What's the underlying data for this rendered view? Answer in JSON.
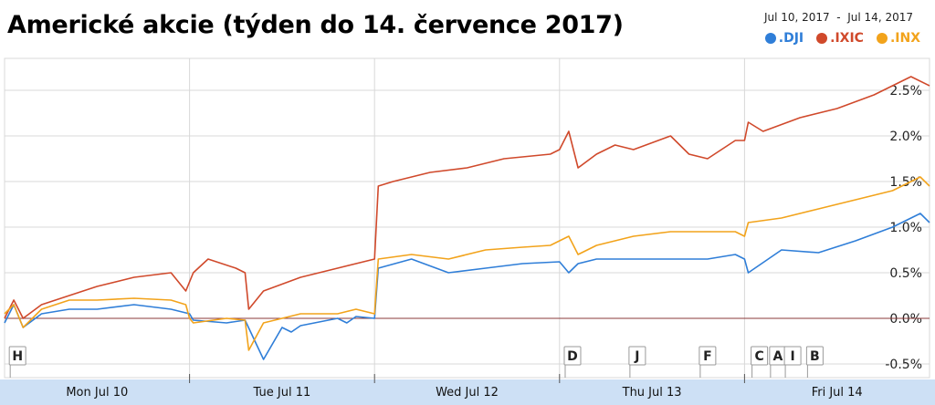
{
  "title": "Americké akcie (týden do 14. července 2017)",
  "date_range": "Jul 10, 2017  -  Jul 14, 2017",
  "colors": {
    "DJI": "#2f7ed8",
    "IXIC": "#d0492b",
    "INX": "#f2a31b",
    "grid": "#d8d8d8",
    "zero": "#8b3a3a",
    "axisband": "#cde0f5"
  },
  "chart_data": {
    "type": "line",
    "title": "Americké akcie (týden do 14. července 2017)",
    "y_unit": "%",
    "ylim": [
      -0.65,
      2.85
    ],
    "y_ticks": [
      "2.5%",
      "2.0%",
      "1.5%",
      "1.0%",
      "0.5%",
      "0.0%",
      "-0.5%"
    ],
    "y_tick_values": [
      2.5,
      2.0,
      1.5,
      1.0,
      0.5,
      0.0,
      -0.5
    ],
    "x_labels": [
      "Mon Jul 10",
      "Tue Jul 11",
      "Wed Jul 12",
      "Thu Jul 13",
      "Fri Jul 14"
    ],
    "xlim": [
      0,
      5
    ],
    "grid": true,
    "legend_position": "top-right",
    "series": [
      {
        "name": ".DJI",
        "color": "#2f7ed8",
        "x": [
          0,
          0.05,
          0.1,
          0.2,
          0.35,
          0.5,
          0.7,
          0.9,
          1.0,
          1.02,
          1.2,
          1.3,
          1.4,
          1.5,
          1.55,
          1.6,
          1.8,
          1.85,
          1.9,
          2.0,
          2.02,
          2.2,
          2.4,
          2.6,
          2.8,
          3.0,
          3.05,
          3.1,
          3.2,
          3.4,
          3.6,
          3.8,
          3.95,
          4.0,
          4.02,
          4.2,
          4.4,
          4.6,
          4.8,
          4.95,
          5.0
        ],
        "y": [
          -0.05,
          0.15,
          -0.1,
          0.05,
          0.1,
          0.1,
          0.15,
          0.1,
          0.05,
          -0.02,
          -0.05,
          -0.02,
          -0.45,
          -0.1,
          -0.15,
          -0.08,
          0.0,
          -0.05,
          0.02,
          0.0,
          0.55,
          0.65,
          0.5,
          0.55,
          0.6,
          0.62,
          0.5,
          0.6,
          0.65,
          0.65,
          0.65,
          0.65,
          0.7,
          0.65,
          0.5,
          0.75,
          0.72,
          0.85,
          1.0,
          1.15,
          1.05
        ]
      },
      {
        "name": ".IXIC",
        "color": "#d0492b",
        "x": [
          0,
          0.05,
          0.1,
          0.2,
          0.35,
          0.5,
          0.7,
          0.9,
          0.98,
          1.0,
          1.02,
          1.1,
          1.25,
          1.3,
          1.32,
          1.4,
          1.6,
          1.8,
          1.9,
          2.0,
          2.02,
          2.1,
          2.3,
          2.5,
          2.7,
          2.95,
          3.0,
          3.05,
          3.1,
          3.2,
          3.3,
          3.4,
          3.6,
          3.7,
          3.8,
          3.95,
          4.0,
          4.02,
          4.1,
          4.3,
          4.5,
          4.7,
          4.9,
          5.0
        ],
        "y": [
          0.0,
          0.2,
          0.0,
          0.15,
          0.25,
          0.35,
          0.45,
          0.5,
          0.3,
          0.4,
          0.5,
          0.65,
          0.55,
          0.5,
          0.1,
          0.3,
          0.45,
          0.55,
          0.6,
          0.65,
          1.45,
          1.5,
          1.6,
          1.65,
          1.75,
          1.8,
          1.85,
          2.05,
          1.65,
          1.8,
          1.9,
          1.85,
          2.0,
          1.8,
          1.75,
          1.95,
          1.95,
          2.15,
          2.05,
          2.2,
          2.3,
          2.45,
          2.65,
          2.55
        ]
      },
      {
        "name": ".INX",
        "color": "#f2a31b",
        "x": [
          0,
          0.05,
          0.1,
          0.2,
          0.35,
          0.5,
          0.7,
          0.9,
          0.98,
          1.0,
          1.02,
          1.2,
          1.3,
          1.32,
          1.4,
          1.6,
          1.8,
          1.9,
          2.0,
          2.02,
          2.2,
          2.4,
          2.6,
          2.8,
          2.95,
          3.0,
          3.05,
          3.1,
          3.2,
          3.4,
          3.6,
          3.8,
          3.95,
          4.0,
          4.02,
          4.2,
          4.4,
          4.6,
          4.8,
          4.95,
          5.0
        ],
        "y": [
          0.05,
          0.15,
          -0.1,
          0.1,
          0.2,
          0.2,
          0.22,
          0.2,
          0.15,
          0.0,
          -0.05,
          0.0,
          -0.02,
          -0.35,
          -0.05,
          0.05,
          0.05,
          0.1,
          0.05,
          0.65,
          0.7,
          0.65,
          0.75,
          0.78,
          0.8,
          0.85,
          0.9,
          0.7,
          0.8,
          0.9,
          0.95,
          0.95,
          0.95,
          0.9,
          1.05,
          1.1,
          1.2,
          1.3,
          1.4,
          1.55,
          1.45
        ]
      }
    ],
    "flags": [
      {
        "label": "H",
        "x": 0.07
      },
      {
        "label": "D",
        "x": 3.07
      },
      {
        "label": "J",
        "x": 3.42
      },
      {
        "label": "F",
        "x": 3.8
      },
      {
        "label": "C",
        "x": 4.08
      },
      {
        "label": "A",
        "x": 4.18
      },
      {
        "label": "I",
        "x": 4.26
      },
      {
        "label": "B",
        "x": 4.38
      }
    ]
  },
  "legend": [
    {
      "name": ".DJI",
      "color": "#2f7ed8"
    },
    {
      "name": ".IXIC",
      "color": "#d0492b"
    },
    {
      "name": ".INX",
      "color": "#f2a31b"
    }
  ]
}
